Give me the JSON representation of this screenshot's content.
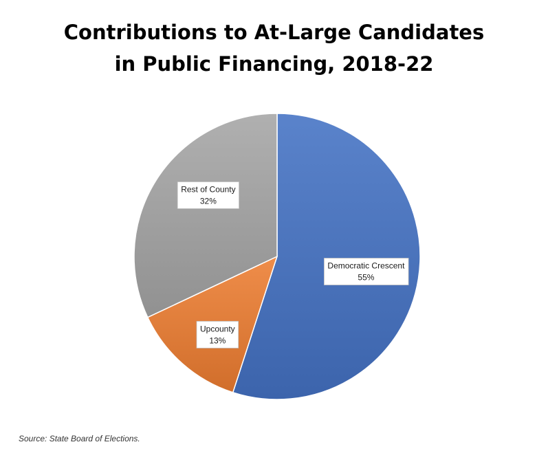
{
  "chart_data": {
    "type": "pie",
    "title_lines": [
      "Contributions to At-Large Candidates",
      "in Public Financing, 2018-22"
    ],
    "slices": [
      {
        "label": "Democratic Crescent",
        "value": 55,
        "value_label": "55%",
        "color": "#4472c4"
      },
      {
        "label": "Upcounty",
        "value": 13,
        "value_label": "13%",
        "color": "#ed7d31"
      },
      {
        "label": "Rest of County",
        "value": 32,
        "value_label": "32%",
        "color": "#a5a5a5"
      }
    ],
    "start_at": "12 o'clock",
    "direction": "clockwise"
  },
  "footer": {
    "source": "Source: State Board of Elections."
  }
}
